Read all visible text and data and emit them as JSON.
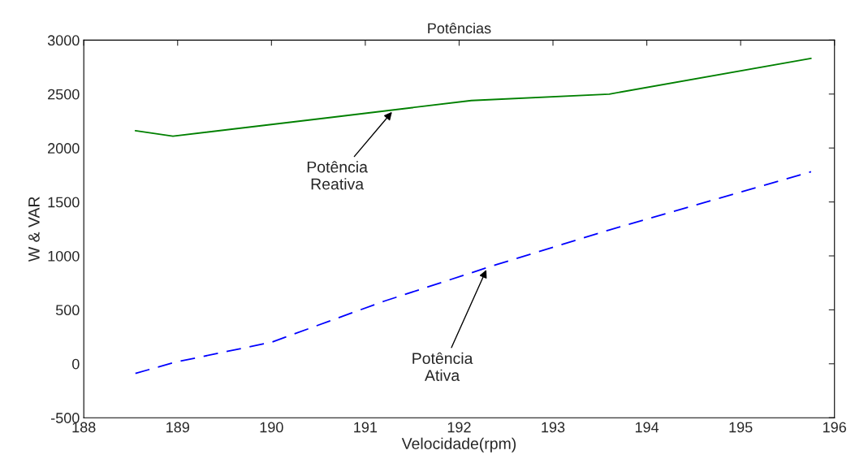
{
  "chart_data": {
    "type": "line",
    "title": "Potências",
    "xlabel": "Velocidade(rpm)",
    "ylabel": "W & VAR",
    "xlim": [
      188,
      196
    ],
    "xticks": [
      188,
      189,
      190,
      191,
      192,
      193,
      194,
      195,
      196
    ],
    "ylim": [
      -500,
      3000
    ],
    "yticks": [
      -500,
      0,
      500,
      1000,
      1500,
      2000,
      2500,
      3000
    ],
    "grid": false,
    "series": [
      {
        "color": "#008000",
        "line_style": "solid",
        "x": [
          188.55,
          188.95,
          190.6,
          192.13,
          193.6,
          195.75
        ],
        "values": [
          2160,
          2110,
          2280,
          2440,
          2500,
          2830
        ]
      },
      {
        "color": "#0000ff",
        "line_style": "dashed",
        "x": [
          188.55,
          188.95,
          190.0,
          191.2,
          192.4,
          193.6,
          195.75
        ],
        "values": [
          -90,
          10,
          200,
          580,
          920,
          1240,
          1780
        ]
      }
    ],
    "annotations": [
      {
        "text": "Potência\nReativa",
        "x": 191.3,
        "y": 2350
      },
      {
        "text": "Potência\nAtiva",
        "x": 192.3,
        "y": 890
      }
    ]
  }
}
